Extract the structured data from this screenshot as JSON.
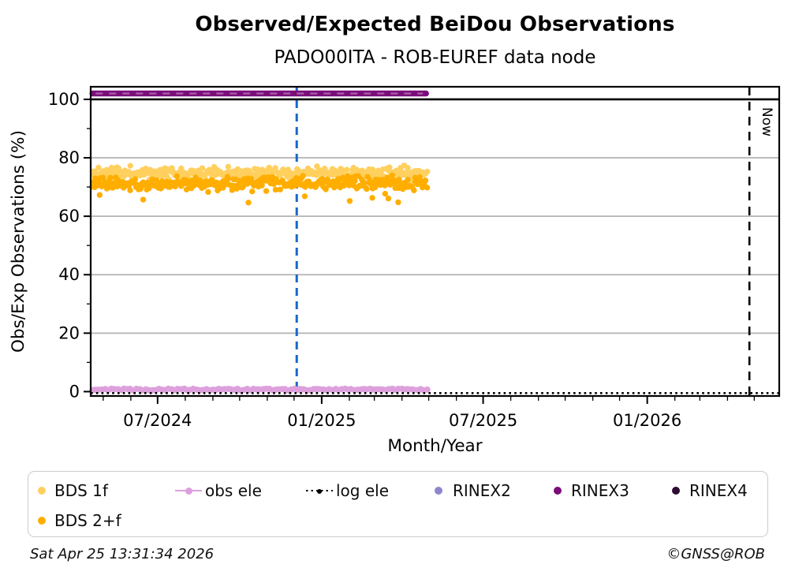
{
  "chart_data": {
    "type": "scatter",
    "title": "Observed/Expected BeiDou Observations",
    "subtitle": "PADO00ITA - ROB-EUREF data node",
    "xlabel": "Month/Year",
    "ylabel": "Obs/Exp Observations (%)",
    "ylim": [
      -1.5,
      104.3
    ],
    "yticks_major": [
      0,
      20,
      40,
      60,
      80,
      100
    ],
    "yticks_minor": [
      10,
      30,
      50,
      70,
      90
    ],
    "grid_y": [
      20,
      40,
      60,
      80
    ],
    "grid_color": "#b3b3b3",
    "x_domain": [
      "2024-04-17",
      "2026-05-29"
    ],
    "x_major_ticks": [
      {
        "date": "2024-07-01",
        "label": "07/2024"
      },
      {
        "date": "2025-01-01",
        "label": "01/2025"
      },
      {
        "date": "2025-07-01",
        "label": "07/2025"
      },
      {
        "date": "2026-01-01",
        "label": "01/2026"
      }
    ],
    "x_minor_tick_dates": [
      "2024-05-01",
      "2024-06-01",
      "2024-08-01",
      "2024-09-01",
      "2024-10-01",
      "2024-11-01",
      "2024-12-01",
      "2025-02-01",
      "2025-03-01",
      "2025-04-01",
      "2025-05-01",
      "2025-06-01",
      "2025-08-01",
      "2025-09-01",
      "2025-10-01",
      "2025-11-01",
      "2025-12-01",
      "2026-02-01",
      "2026-03-01",
      "2026-04-01",
      "2026-05-01"
    ],
    "series": [
      {
        "name": "BDS 1f",
        "kind": "scatter",
        "color": "#ffd05e",
        "x_start": "2024-04-19",
        "x_end": "2025-04-29",
        "y_mean": 74.8,
        "y_sd": 1.0,
        "y_min": 72.3,
        "y_max": 77.4,
        "n_points": 330,
        "seed": 11,
        "outliers": {
          "count": 4,
          "y_low": 70.6,
          "y_high": 72.2
        }
      },
      {
        "name": "BDS 2+f",
        "kind": "scatter",
        "color": "#ffae00",
        "x_start": "2024-04-19",
        "x_end": "2025-04-29",
        "y_mean": 71.2,
        "y_sd": 1.1,
        "y_min": 68.3,
        "y_max": 74.0,
        "n_points": 330,
        "seed": 23,
        "outliers": {
          "count": 9,
          "y_low": 64.3,
          "y_high": 68.0
        }
      },
      {
        "name": "obs ele",
        "kind": "marker-line",
        "color": "#dda0dd",
        "x_start": "2024-04-19",
        "x_end": "2025-04-29",
        "y": 0.7
      },
      {
        "name": "log ele",
        "kind": "dotted-line",
        "color": "#000000",
        "x_start": "2024-04-17",
        "x_end": "2026-05-29",
        "y": -0.5
      },
      {
        "name": "RINEX2",
        "kind": "scatter",
        "color": "#8d86cb",
        "n_points": 0
      },
      {
        "name": "RINEX3",
        "kind": "thick-line",
        "color": "#7a0d7a",
        "x_start": "2024-04-19",
        "x_end": "2025-04-28",
        "y": 102
      },
      {
        "name": "RINEX4",
        "kind": "scatter",
        "color": "#2e0c33",
        "n_points": 0
      }
    ],
    "reference_lines": [
      {
        "name": "100-percent-line",
        "y": 100,
        "color": "#000000",
        "style": "solid"
      }
    ],
    "event_lines": [
      {
        "name": "data-event-line",
        "date": "2024-12-04",
        "color": "#1766c8",
        "style": "dashed",
        "label": ""
      },
      {
        "name": "now-line",
        "date": "2026-04-25T13:31:34",
        "color": "#000000",
        "style": "dashed",
        "label": "Now"
      }
    ]
  },
  "legend": {
    "items": [
      {
        "label": "BDS 1f",
        "marker": "dot",
        "color": "#ffd05e",
        "row": 1,
        "col": 1
      },
      {
        "label": "obs ele",
        "marker": "line-dot",
        "color": "#dda0dd",
        "row": 1,
        "col": 2
      },
      {
        "label": "log ele",
        "marker": "dotted-line-dot",
        "color": "#000000",
        "row": 1,
        "col": 3
      },
      {
        "label": "RINEX2",
        "marker": "dot",
        "color": "#8d86cb",
        "row": 1,
        "col": 4
      },
      {
        "label": "RINEX3",
        "marker": "dot",
        "color": "#7a0d7a",
        "row": 1,
        "col": 5
      },
      {
        "label": "RINEX4",
        "marker": "dot",
        "color": "#2e0c33",
        "row": 1,
        "col": 6
      },
      {
        "label": "BDS 2+f",
        "marker": "dot",
        "color": "#ffae00",
        "row": 2,
        "col": 1
      }
    ]
  },
  "footer": {
    "timestamp": "Sat Apr 25 13:31:34 2026",
    "copyright": "©GNSS@ROB"
  }
}
